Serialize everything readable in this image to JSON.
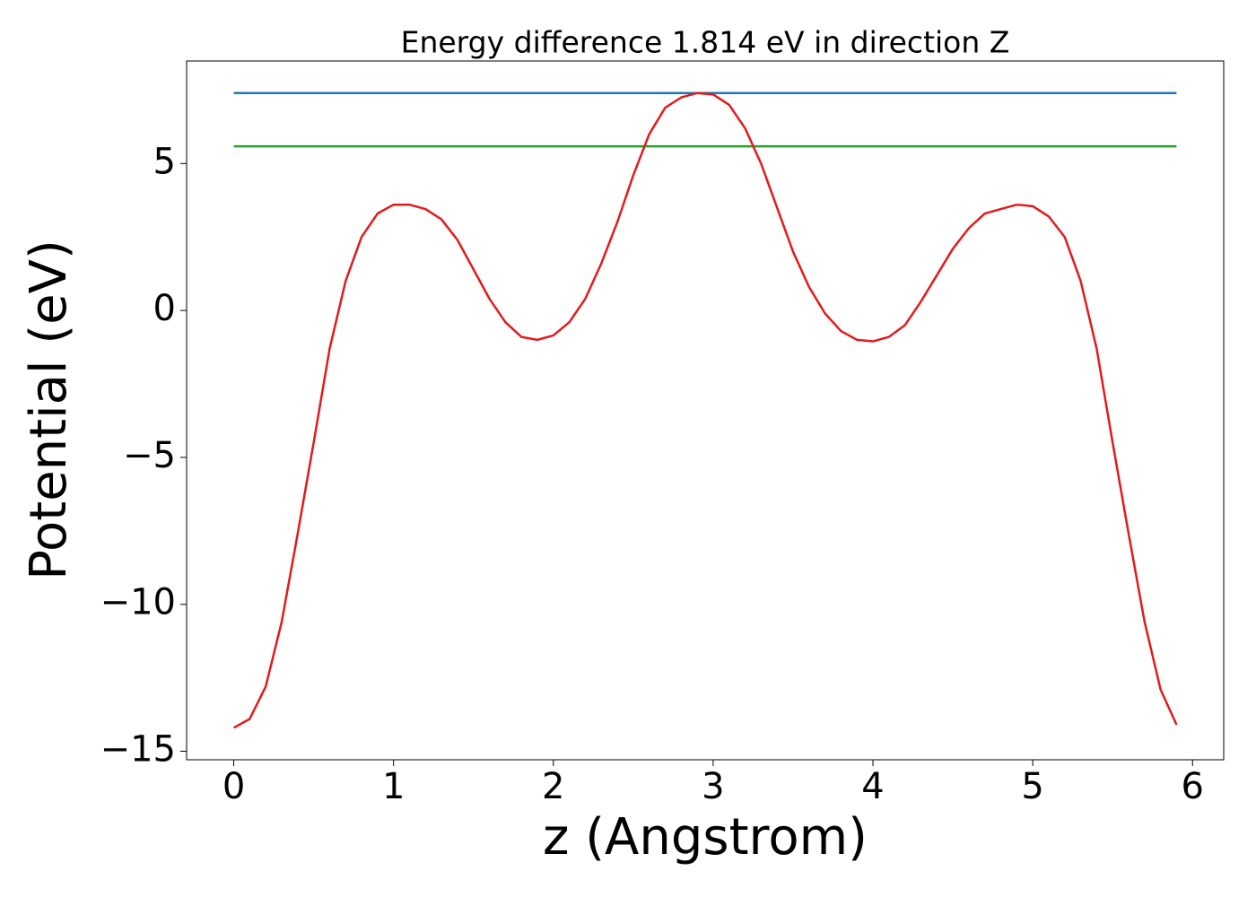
{
  "chart_data": {
    "type": "line",
    "title": "Energy difference 1.814 eV in direction Z",
    "x_label": "z (Angstrom)",
    "y_label": "Potential (eV)",
    "xlim": [
      -0.295,
      6.195
    ],
    "ylim": [
      -15.29,
      8.49
    ],
    "xticks": [
      0,
      1,
      2,
      3,
      4,
      5,
      6
    ],
    "yticks": [
      {
        "value": -15,
        "label": "−15"
      },
      {
        "value": -10,
        "label": "−10"
      },
      {
        "value": -5,
        "label": "−5"
      },
      0,
      5
    ],
    "grid": false,
    "series": [
      {
        "color": "#1f77b4",
        "x": [
          0,
          5.9
        ],
        "values": [
          7.4,
          7.4
        ]
      },
      {
        "color": "#2ca02c",
        "x": [
          0,
          5.9
        ],
        "values": [
          5.586,
          5.586
        ]
      },
      {
        "color": "#e31a1c",
        "x": [
          0,
          0.1,
          0.2,
          0.3,
          0.4,
          0.5,
          0.6,
          0.7,
          0.8,
          0.9,
          1.0,
          1.1,
          1.2,
          1.3,
          1.4,
          1.5,
          1.6,
          1.7,
          1.8,
          1.9,
          2.0,
          2.1,
          2.2,
          2.3,
          2.4,
          2.5,
          2.6,
          2.7,
          2.8,
          2.9,
          3.0,
          3.1,
          3.2,
          3.3,
          3.4,
          3.5,
          3.6,
          3.7,
          3.8,
          3.9,
          4.0,
          4.1,
          4.2,
          4.3,
          4.4,
          4.5,
          4.6,
          4.7,
          4.8,
          4.9,
          5.0,
          5.1,
          5.2,
          5.3,
          5.4,
          5.5,
          5.6,
          5.7,
          5.8,
          5.9
        ],
        "values": [
          -14.2,
          -13.9,
          -12.8,
          -10.6,
          -7.6,
          -4.5,
          -1.3,
          1.0,
          2.5,
          3.3,
          3.6,
          3.6,
          3.45,
          3.1,
          2.4,
          1.4,
          0.4,
          -0.4,
          -0.9,
          -1.0,
          -0.85,
          -0.4,
          0.4,
          1.6,
          3.0,
          4.6,
          6.0,
          6.9,
          7.25,
          7.4,
          7.35,
          7.0,
          6.2,
          5.0,
          3.5,
          2.0,
          0.8,
          -0.1,
          -0.7,
          -1.0,
          -1.05,
          -0.9,
          -0.5,
          0.3,
          1.2,
          2.1,
          2.8,
          3.3,
          3.45,
          3.6,
          3.55,
          3.2,
          2.5,
          1.0,
          -1.3,
          -4.5,
          -7.6,
          -10.6,
          -12.9,
          -14.1
        ]
      }
    ]
  }
}
